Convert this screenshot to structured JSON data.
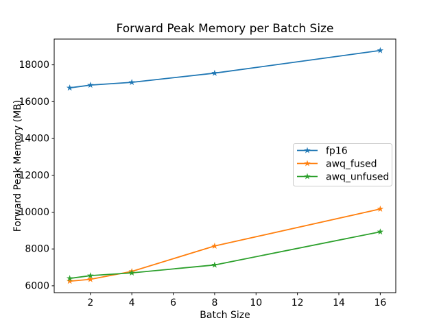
{
  "window": {
    "background": "#ffffff"
  },
  "chart_data": {
    "type": "line",
    "title": "Forward Peak Memory per Batch Size",
    "xlabel": "Batch Size",
    "ylabel": "Forward Peak Memory (MB)",
    "x": [
      1,
      2,
      4,
      8,
      16
    ],
    "series": [
      {
        "name": "fp16",
        "color": "#1f77b4",
        "values": [
          16750,
          16900,
          17050,
          17550,
          18780
        ]
      },
      {
        "name": "awq_fused",
        "color": "#ff7f0e",
        "values": [
          6250,
          6350,
          6780,
          8160,
          10170
        ]
      },
      {
        "name": "awq_unfused",
        "color": "#2ca02c",
        "values": [
          6400,
          6550,
          6700,
          7130,
          8930
        ]
      }
    ],
    "marker": "star",
    "line_width": 1.8,
    "xticks": [
      2,
      4,
      6,
      8,
      10,
      12,
      14,
      16
    ],
    "yticks": [
      6000,
      8000,
      10000,
      12000,
      14000,
      16000,
      18000
    ],
    "xlim": [
      0.25,
      16.75
    ],
    "ylim": [
      5625,
      19400
    ],
    "grid": false,
    "legend": {
      "position": "center-right",
      "entries": [
        "fp16",
        "awq_fused",
        "awq_unfused"
      ],
      "border_color": "#cccccc"
    }
  }
}
